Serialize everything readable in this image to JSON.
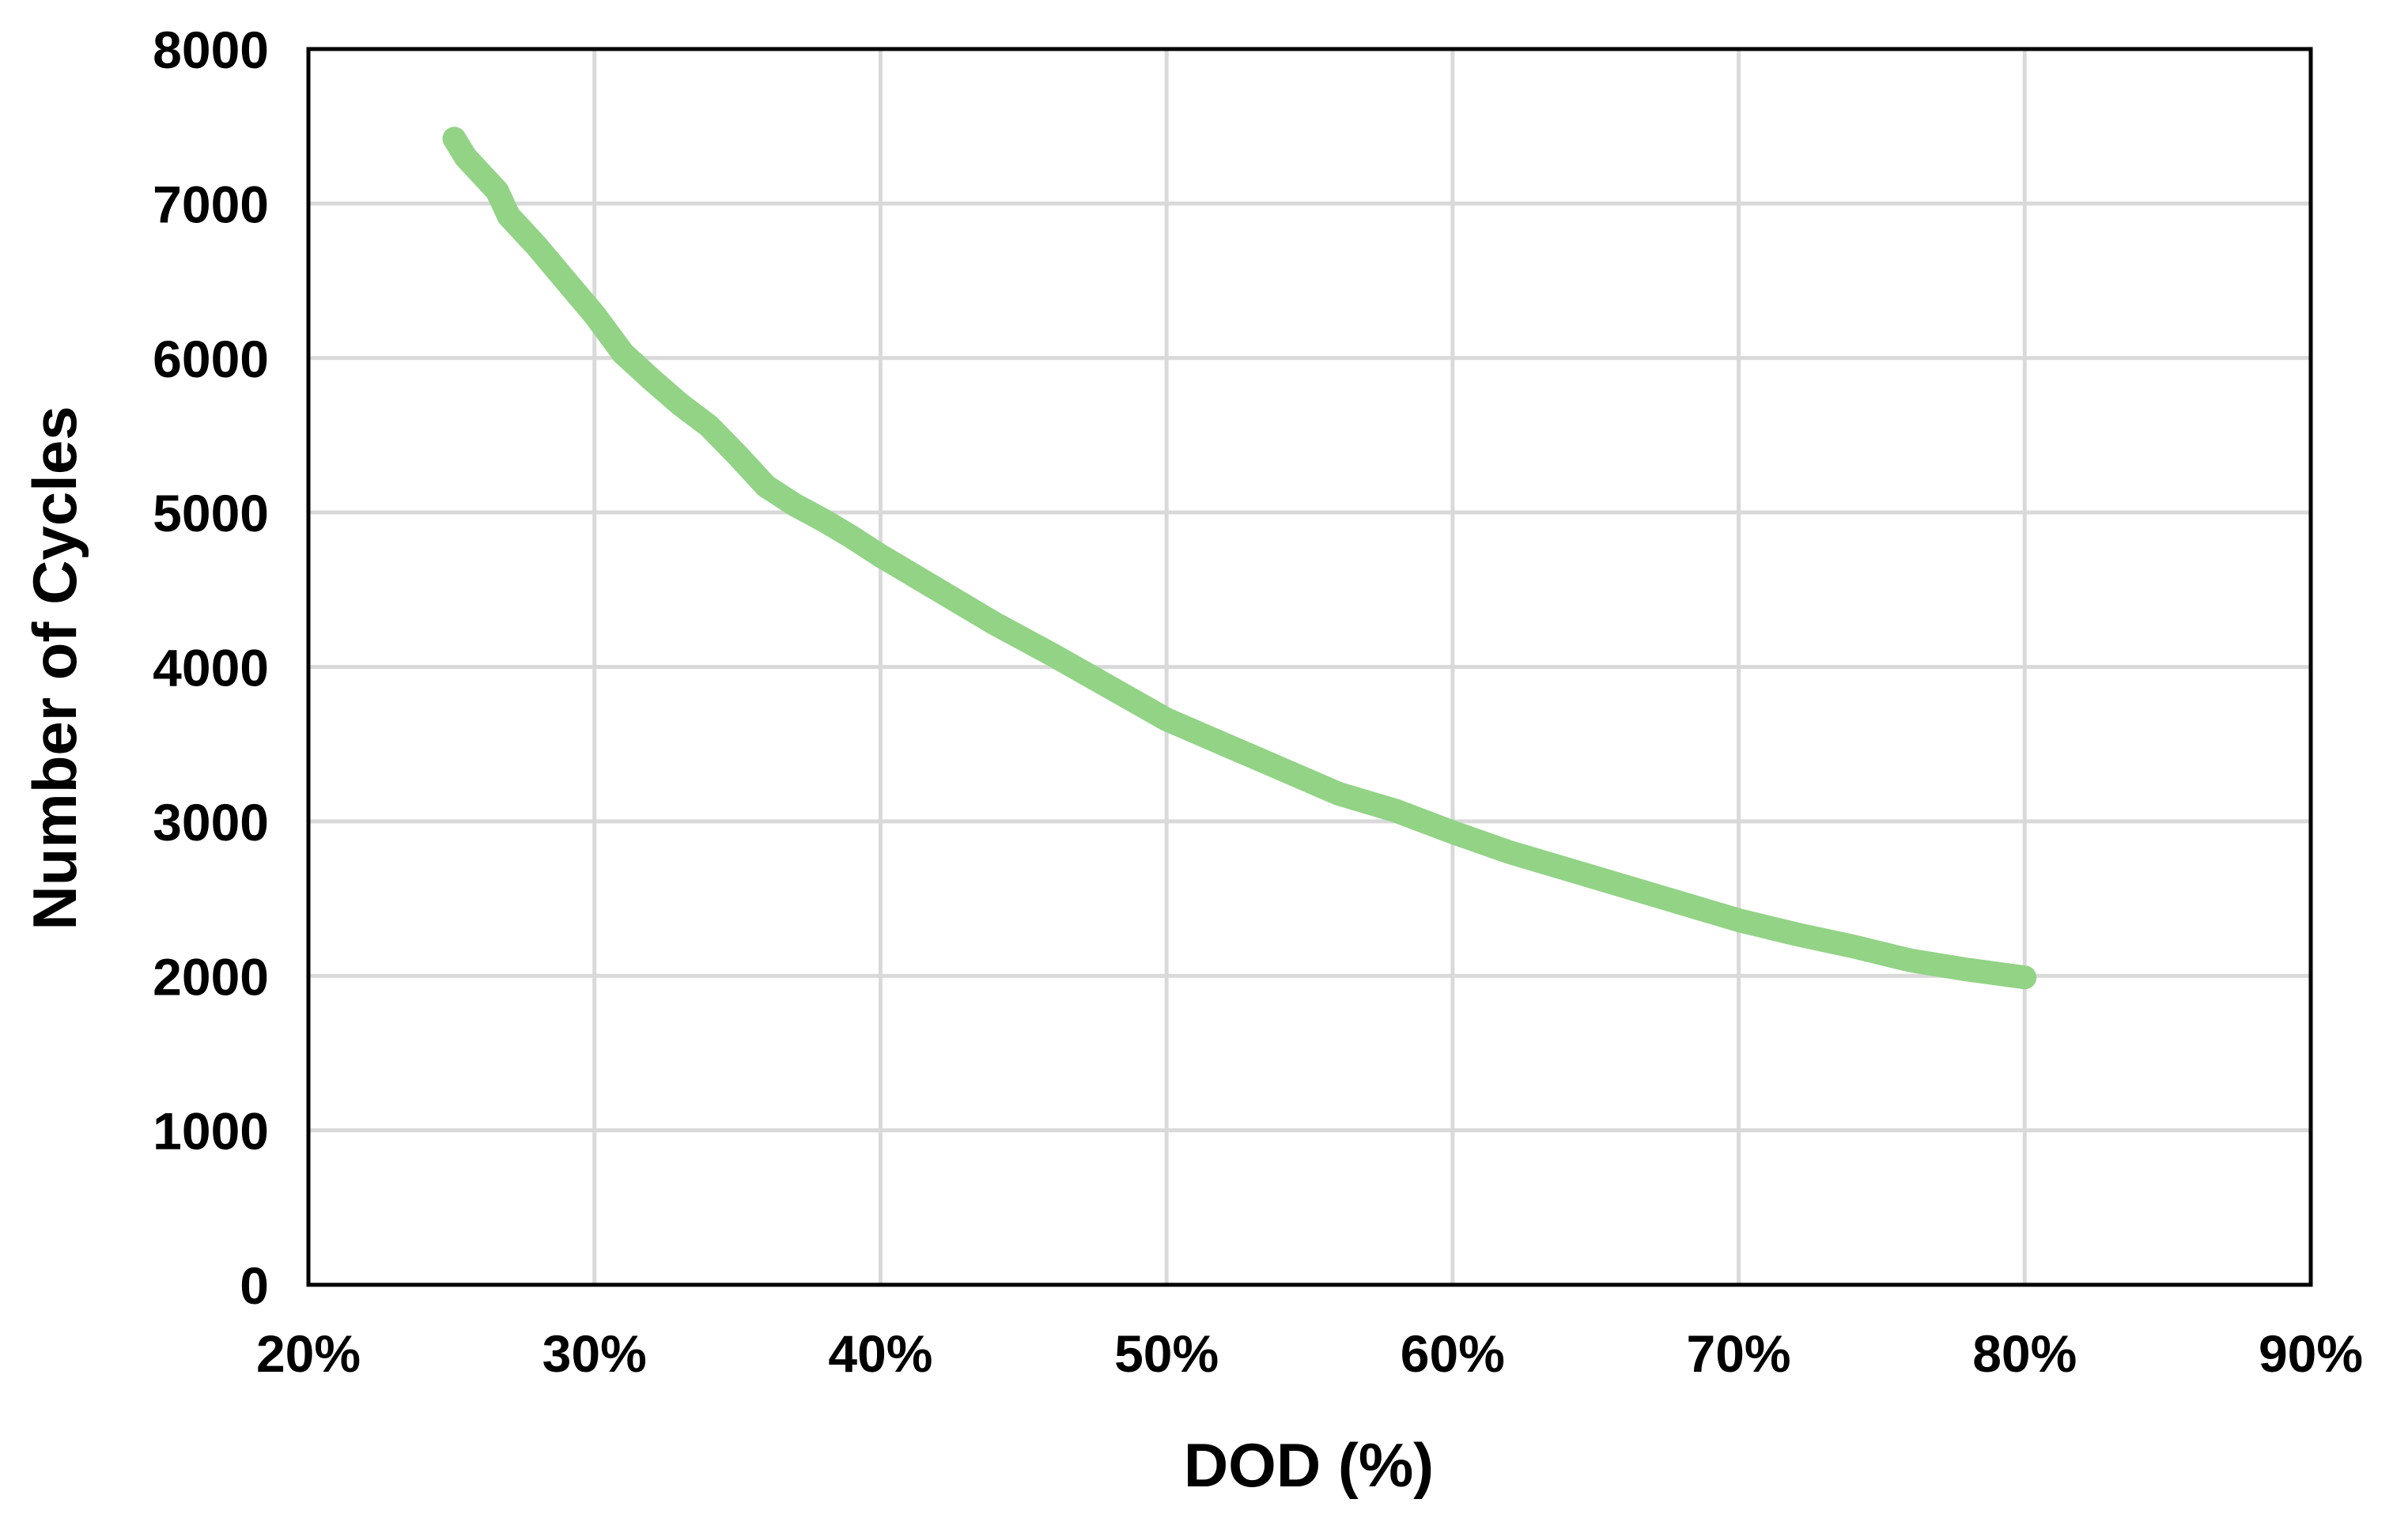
{
  "chart_data": {
    "type": "line",
    "title": "",
    "xlabel": "DOD (%)",
    "ylabel": "Number of Cycles",
    "xlim": [
      20,
      90
    ],
    "ylim": [
      0,
      8000
    ],
    "x_ticks": [
      20,
      30,
      40,
      50,
      60,
      70,
      80,
      90
    ],
    "x_tick_labels": [
      "20%",
      "30%",
      "40%",
      "50%",
      "60%",
      "70%",
      "80%",
      "90%"
    ],
    "y_ticks": [
      0,
      1000,
      2000,
      3000,
      4000,
      5000,
      6000,
      7000,
      8000
    ],
    "y_tick_labels": [
      "0",
      "1000",
      "2000",
      "3000",
      "4000",
      "5000",
      "6000",
      "7000",
      "8000"
    ],
    "grid": true,
    "legend": "none",
    "series": [
      {
        "color": "#92d386",
        "x": [
          25.1,
          25.5,
          26,
          26.6,
          27,
          27.5,
          28,
          29,
          30,
          31,
          32,
          33,
          34,
          35,
          36,
          37,
          38,
          39,
          40,
          42,
          44,
          46,
          48,
          50,
          52,
          54,
          56,
          58,
          60,
          62,
          64,
          66,
          68,
          70,
          72,
          74,
          76,
          78,
          80
        ],
        "y": [
          7420,
          7300,
          7200,
          7080,
          6920,
          6820,
          6720,
          6500,
          6280,
          6030,
          5860,
          5700,
          5560,
          5370,
          5170,
          5050,
          4950,
          4840,
          4720,
          4500,
          4280,
          4080,
          3870,
          3660,
          3500,
          3340,
          3180,
          3070,
          2930,
          2800,
          2690,
          2580,
          2470,
          2360,
          2270,
          2190,
          2100,
          2040,
          1990
        ]
      }
    ]
  }
}
